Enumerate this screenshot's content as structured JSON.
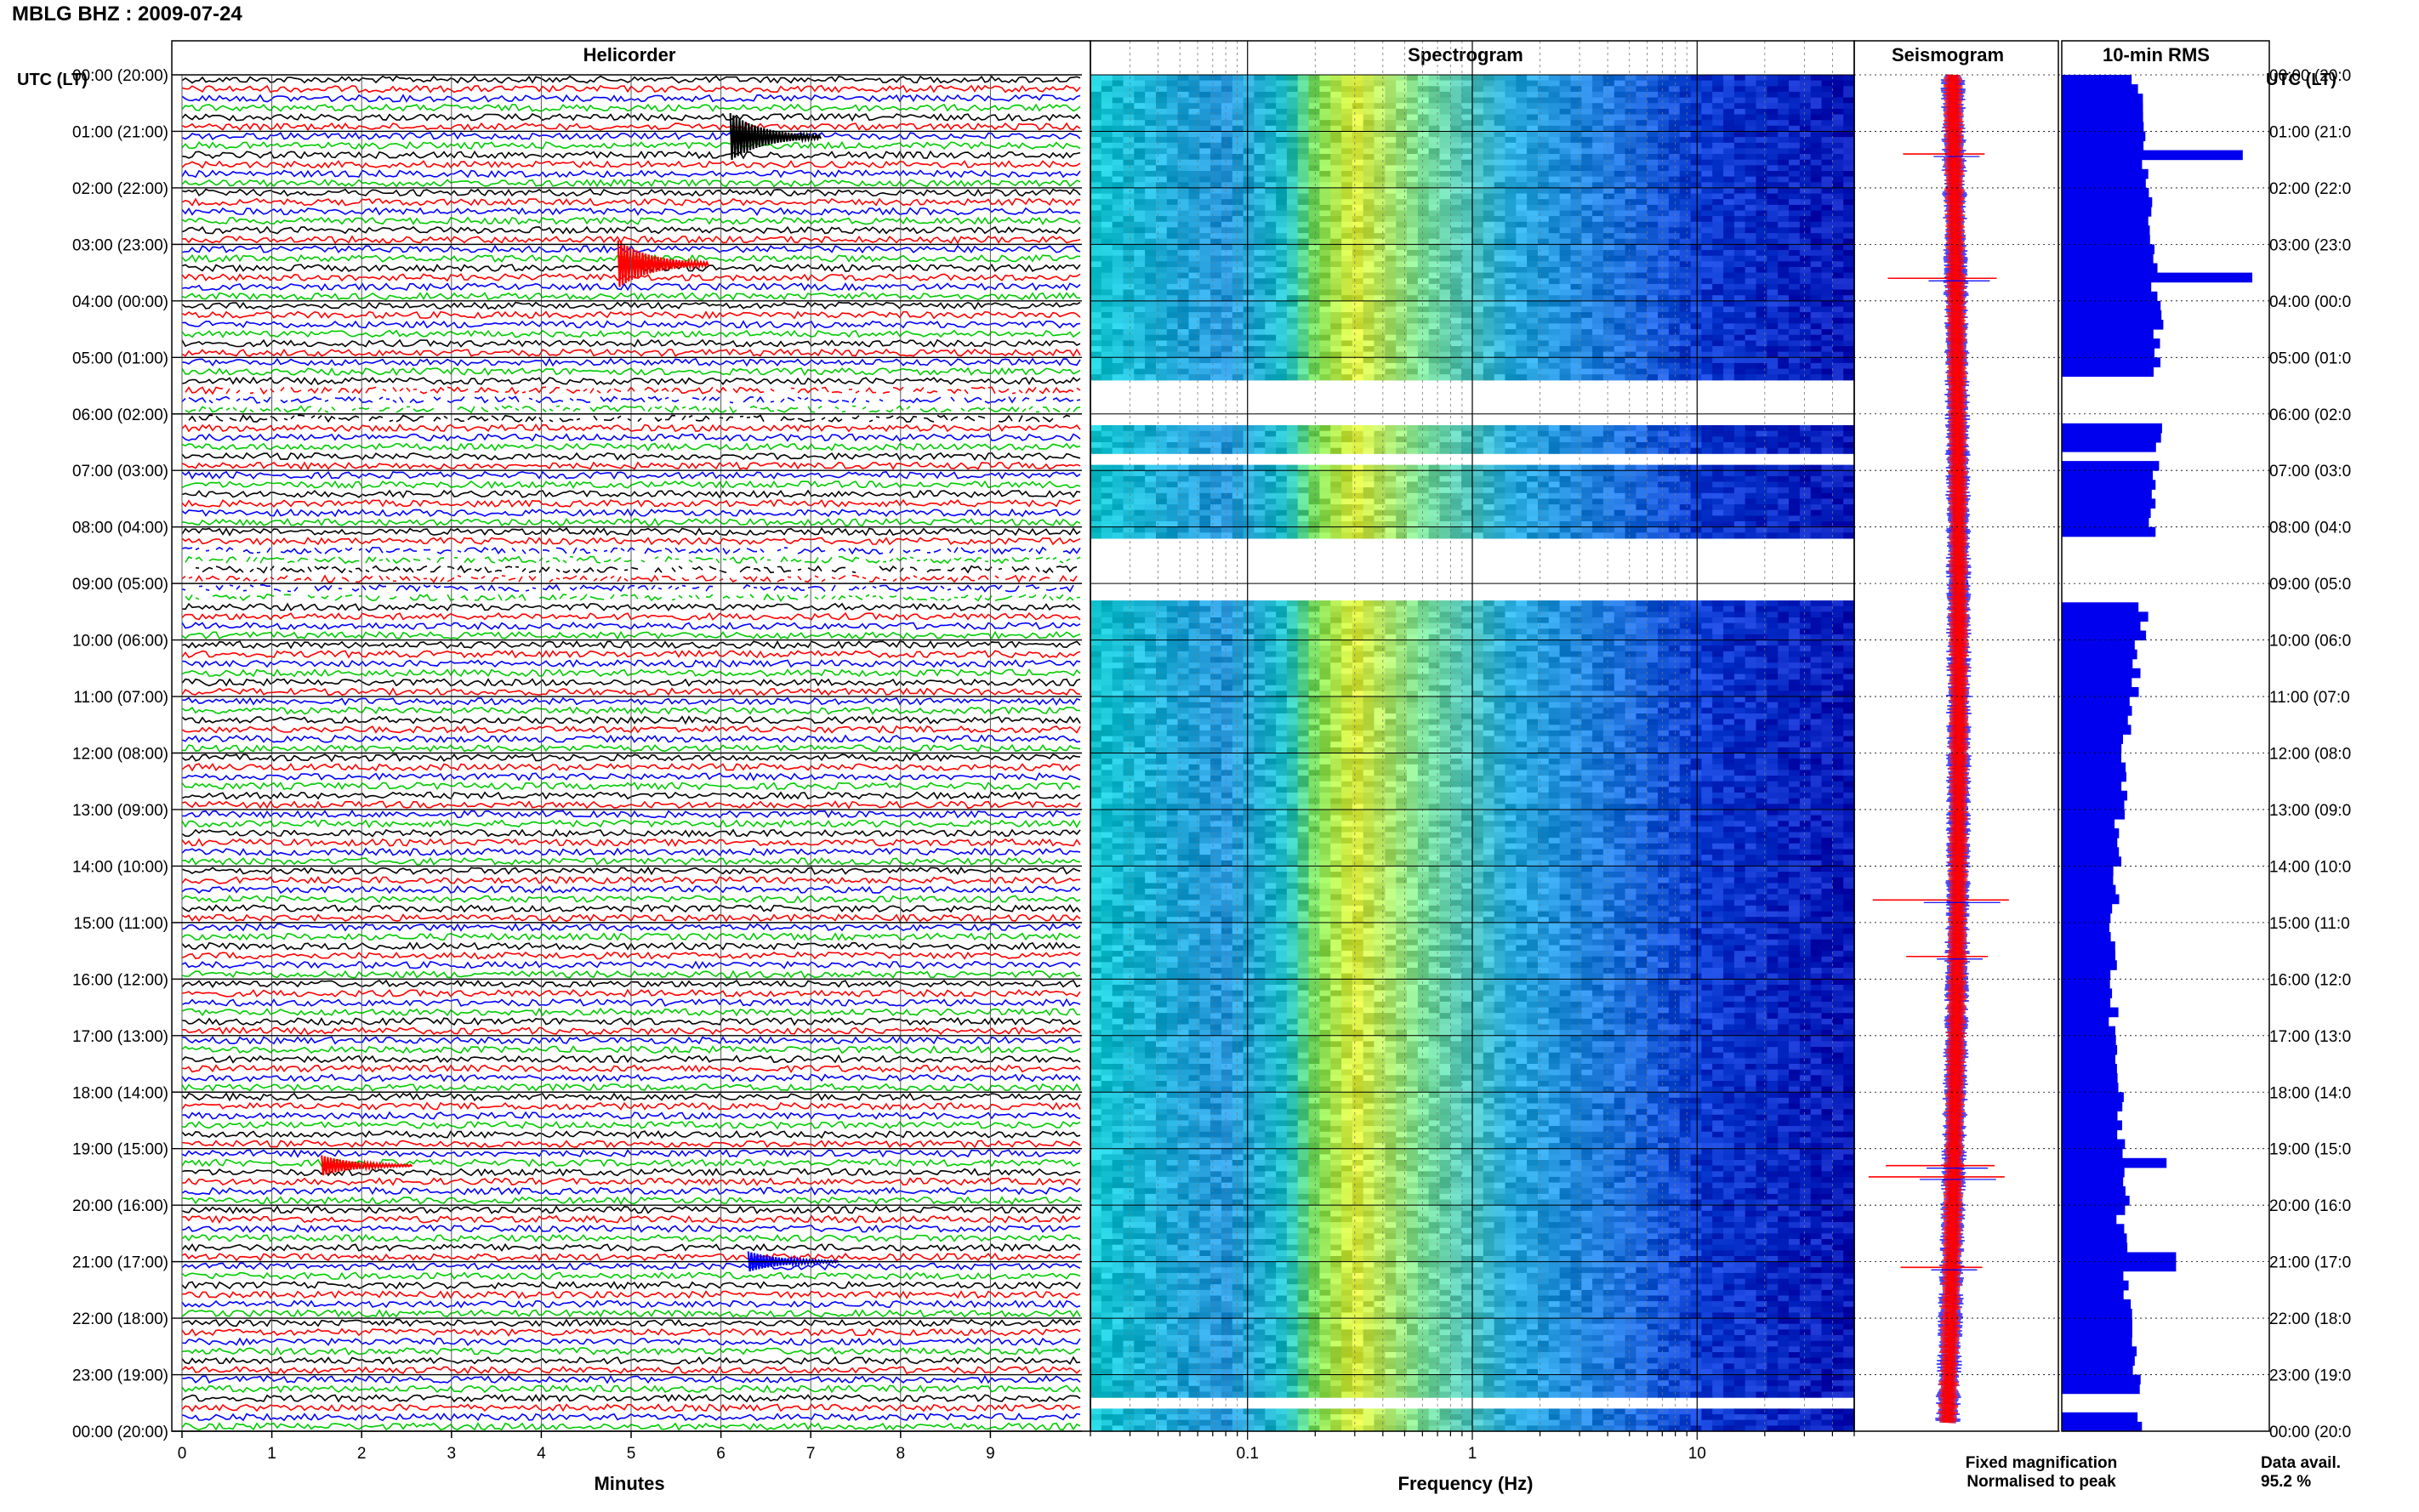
{
  "header": {
    "station": "MBLG BHZ : 2009-07-24"
  },
  "panels": {
    "helicorder": "Helicorder",
    "spectrogram": "Spectrogram",
    "seismogram": "Seismogram",
    "rms": "10-min RMS"
  },
  "axis": {
    "left_title": "UTC (LT)",
    "right_title": "UTC (LT)",
    "minutes_label": "Minutes",
    "frequency_label": "Frequency (Hz)",
    "minute_ticks": [
      "0",
      "1",
      "2",
      "3",
      "4",
      "5",
      "6",
      "7",
      "8",
      "9"
    ],
    "frequency_ticks": [
      "0.1",
      "1",
      "10"
    ],
    "hour_labels": [
      "00:00 (20:00)",
      "01:00 (21:00)",
      "02:00 (22:00)",
      "03:00 (23:00)",
      "04:00 (00:00)",
      "05:00 (01:00)",
      "06:00 (02:00)",
      "07:00 (03:00)",
      "08:00 (04:00)",
      "09:00 (05:00)",
      "10:00 (06:00)",
      "11:00 (07:00)",
      "12:00 (08:00)",
      "13:00 (09:00)",
      "14:00 (10:00)",
      "15:00 (11:00)",
      "16:00 (12:00)",
      "17:00 (13:00)",
      "18:00 (14:00)",
      "19:00 (15:00)",
      "20:00 (16:00)",
      "21:00 (17:00)",
      "22:00 (18:00)",
      "23:00 (19:00)",
      "00:00 (20:00)"
    ],
    "right_hour_labels": [
      "00:00 (20:0",
      "01:00 (21:0",
      "02:00 (22:0",
      "03:00 (23:0",
      "04:00 (00:0",
      "05:00 (01:0",
      "06:00 (02:0",
      "07:00 (03:0",
      "08:00 (04:0",
      "09:00 (05:0",
      "10:00 (06:0",
      "11:00 (07:0",
      "12:00 (08:0",
      "13:00 (09:0",
      "14:00 (10:0",
      "15:00 (11:0",
      "16:00 (12:0",
      "17:00 (13:0",
      "18:00 (14:0",
      "19:00 (15:0",
      "20:00 (16:0",
      "21:00 (17:0",
      "22:00 (18:0",
      "23:00 (19:0",
      "00:00 (20:0"
    ]
  },
  "legend": {
    "fixed": "Fixed magnification",
    "normalised": "Normalised to peak",
    "fixed_color": "#0000ff",
    "normalised_color": "#ff0000"
  },
  "data_avail": {
    "label": "Data avail.",
    "value": "95.2 %"
  },
  "colors": {
    "trace_cycle": [
      "#000000",
      "#ff0000",
      "#0000ff",
      "#00cc00"
    ],
    "rms_bar": "#0000ee",
    "spectrogram_low": "#00d8c8",
    "spectrogram_mid": "#e8f040",
    "spectrogram_high": "#0018c0"
  },
  "chart_data": [
    {
      "type": "line",
      "title": "Helicorder",
      "xlabel": "Minutes",
      "xlim": [
        0,
        10
      ],
      "rows_per_hour": 6,
      "hours": 24,
      "trace_color_cycle": [
        "black",
        "red",
        "blue",
        "green"
      ],
      "notable_events": [
        {
          "hour": 1.1,
          "minute": 6.2,
          "color": "black",
          "amplitude": "large"
        },
        {
          "hour": 3.35,
          "minute": 4.95,
          "color": "red",
          "amplitude": "large"
        },
        {
          "hour": 19.3,
          "minute": 1.65,
          "color": "red",
          "amplitude": "medium"
        },
        {
          "hour": 21.0,
          "minute": 6.4,
          "color": "blue",
          "amplitude": "medium"
        }
      ],
      "gaps_utc": [
        [
          5.5,
          6.1
        ],
        [
          8.2,
          9.3
        ]
      ]
    },
    {
      "type": "heatmap",
      "title": "Spectrogram",
      "xlabel": "Frequency (Hz)",
      "x_scale": "log",
      "xlim": [
        0.02,
        50
      ],
      "ylim_hours": [
        0,
        24
      ],
      "gaps_utc": [
        [
          5.4,
          6.2
        ],
        [
          6.7,
          6.9
        ],
        [
          8.2,
          9.3
        ],
        [
          23.4,
          23.6
        ]
      ]
    },
    {
      "type": "line",
      "title": "Seismogram",
      "legend": [
        "Fixed magnification",
        "Normalised to peak"
      ],
      "spikes_utc": [
        1.4,
        3.6,
        14.6,
        15.6,
        19.3,
        19.5,
        21.1
      ]
    },
    {
      "type": "bar",
      "title": "10-min RMS",
      "orientation": "horizontal",
      "notable_peaks_utc": [
        {
          "hour": 1.4,
          "relative": 0.95
        },
        {
          "hour": 3.6,
          "relative": 1.0
        },
        {
          "hour": 19.3,
          "relative": 0.55
        },
        {
          "hour": 21.0,
          "relative": 0.6
        }
      ],
      "data_availability_percent": 95.2
    }
  ]
}
